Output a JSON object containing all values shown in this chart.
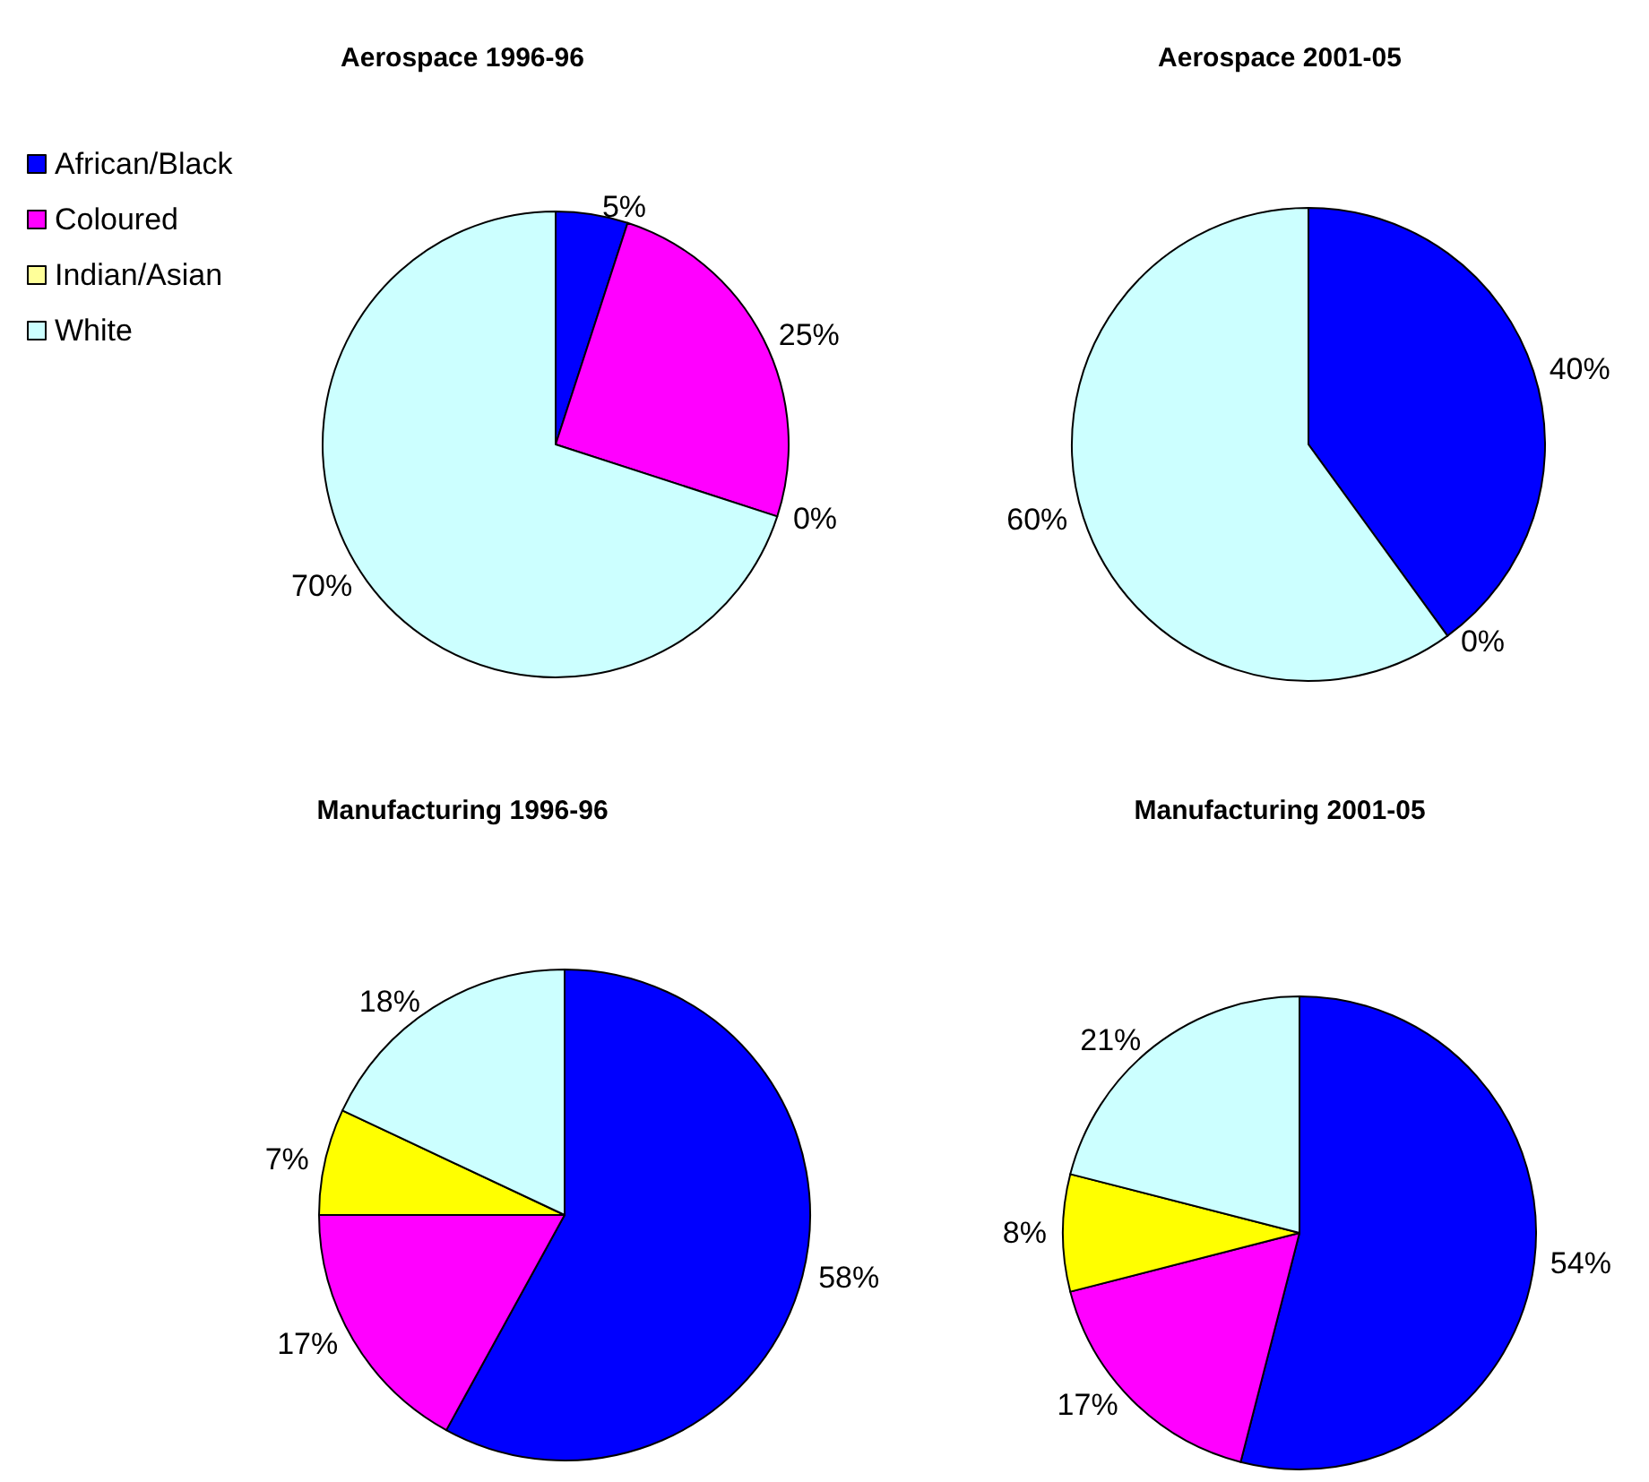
{
  "chart_data": [
    {
      "type": "pie",
      "title": "Aerospace 1996-96",
      "categories": [
        "African/Black",
        "Coloured",
        "Indian/Asian",
        "White"
      ],
      "values": [
        5,
        25,
        0,
        70
      ],
      "colors": [
        "#0000ff",
        "#ff00ff",
        "#ffff99",
        "#ccffff"
      ],
      "value_labels": [
        "5%",
        "25%",
        "0%",
        "70%"
      ],
      "legend": "top left"
    },
    {
      "type": "pie",
      "title": "Aerospace 2001-05",
      "categories": [
        null,
        null,
        null,
        null
      ],
      "values": [
        40,
        0,
        0,
        60
      ],
      "colors": [
        "#0000ff",
        "#ff00ff",
        "#ffff99",
        "#ccffff"
      ],
      "value_labels": [
        "40%",
        "0%",
        null,
        "60%"
      ]
    },
    {
      "type": "pie",
      "title": "Manufacturing 1996-96",
      "categories": [
        null,
        null,
        null,
        null
      ],
      "values": [
        58,
        17,
        7,
        18
      ],
      "colors": [
        "#0000ff",
        "#ff00ff",
        "#ffff00",
        "#ccffff"
      ],
      "value_labels": [
        "58%",
        "17%",
        "7%",
        "18%"
      ]
    },
    {
      "type": "pie",
      "title": "Manufacturing 2001-05",
      "categories": [
        null,
        null,
        null,
        null
      ],
      "values": [
        54,
        17,
        8,
        21
      ],
      "colors": [
        "#0000ff",
        "#ff00ff",
        "#ffff00",
        "#ccffff"
      ],
      "value_labels": [
        "54%",
        "17%",
        "8%",
        "21%"
      ]
    }
  ]
}
